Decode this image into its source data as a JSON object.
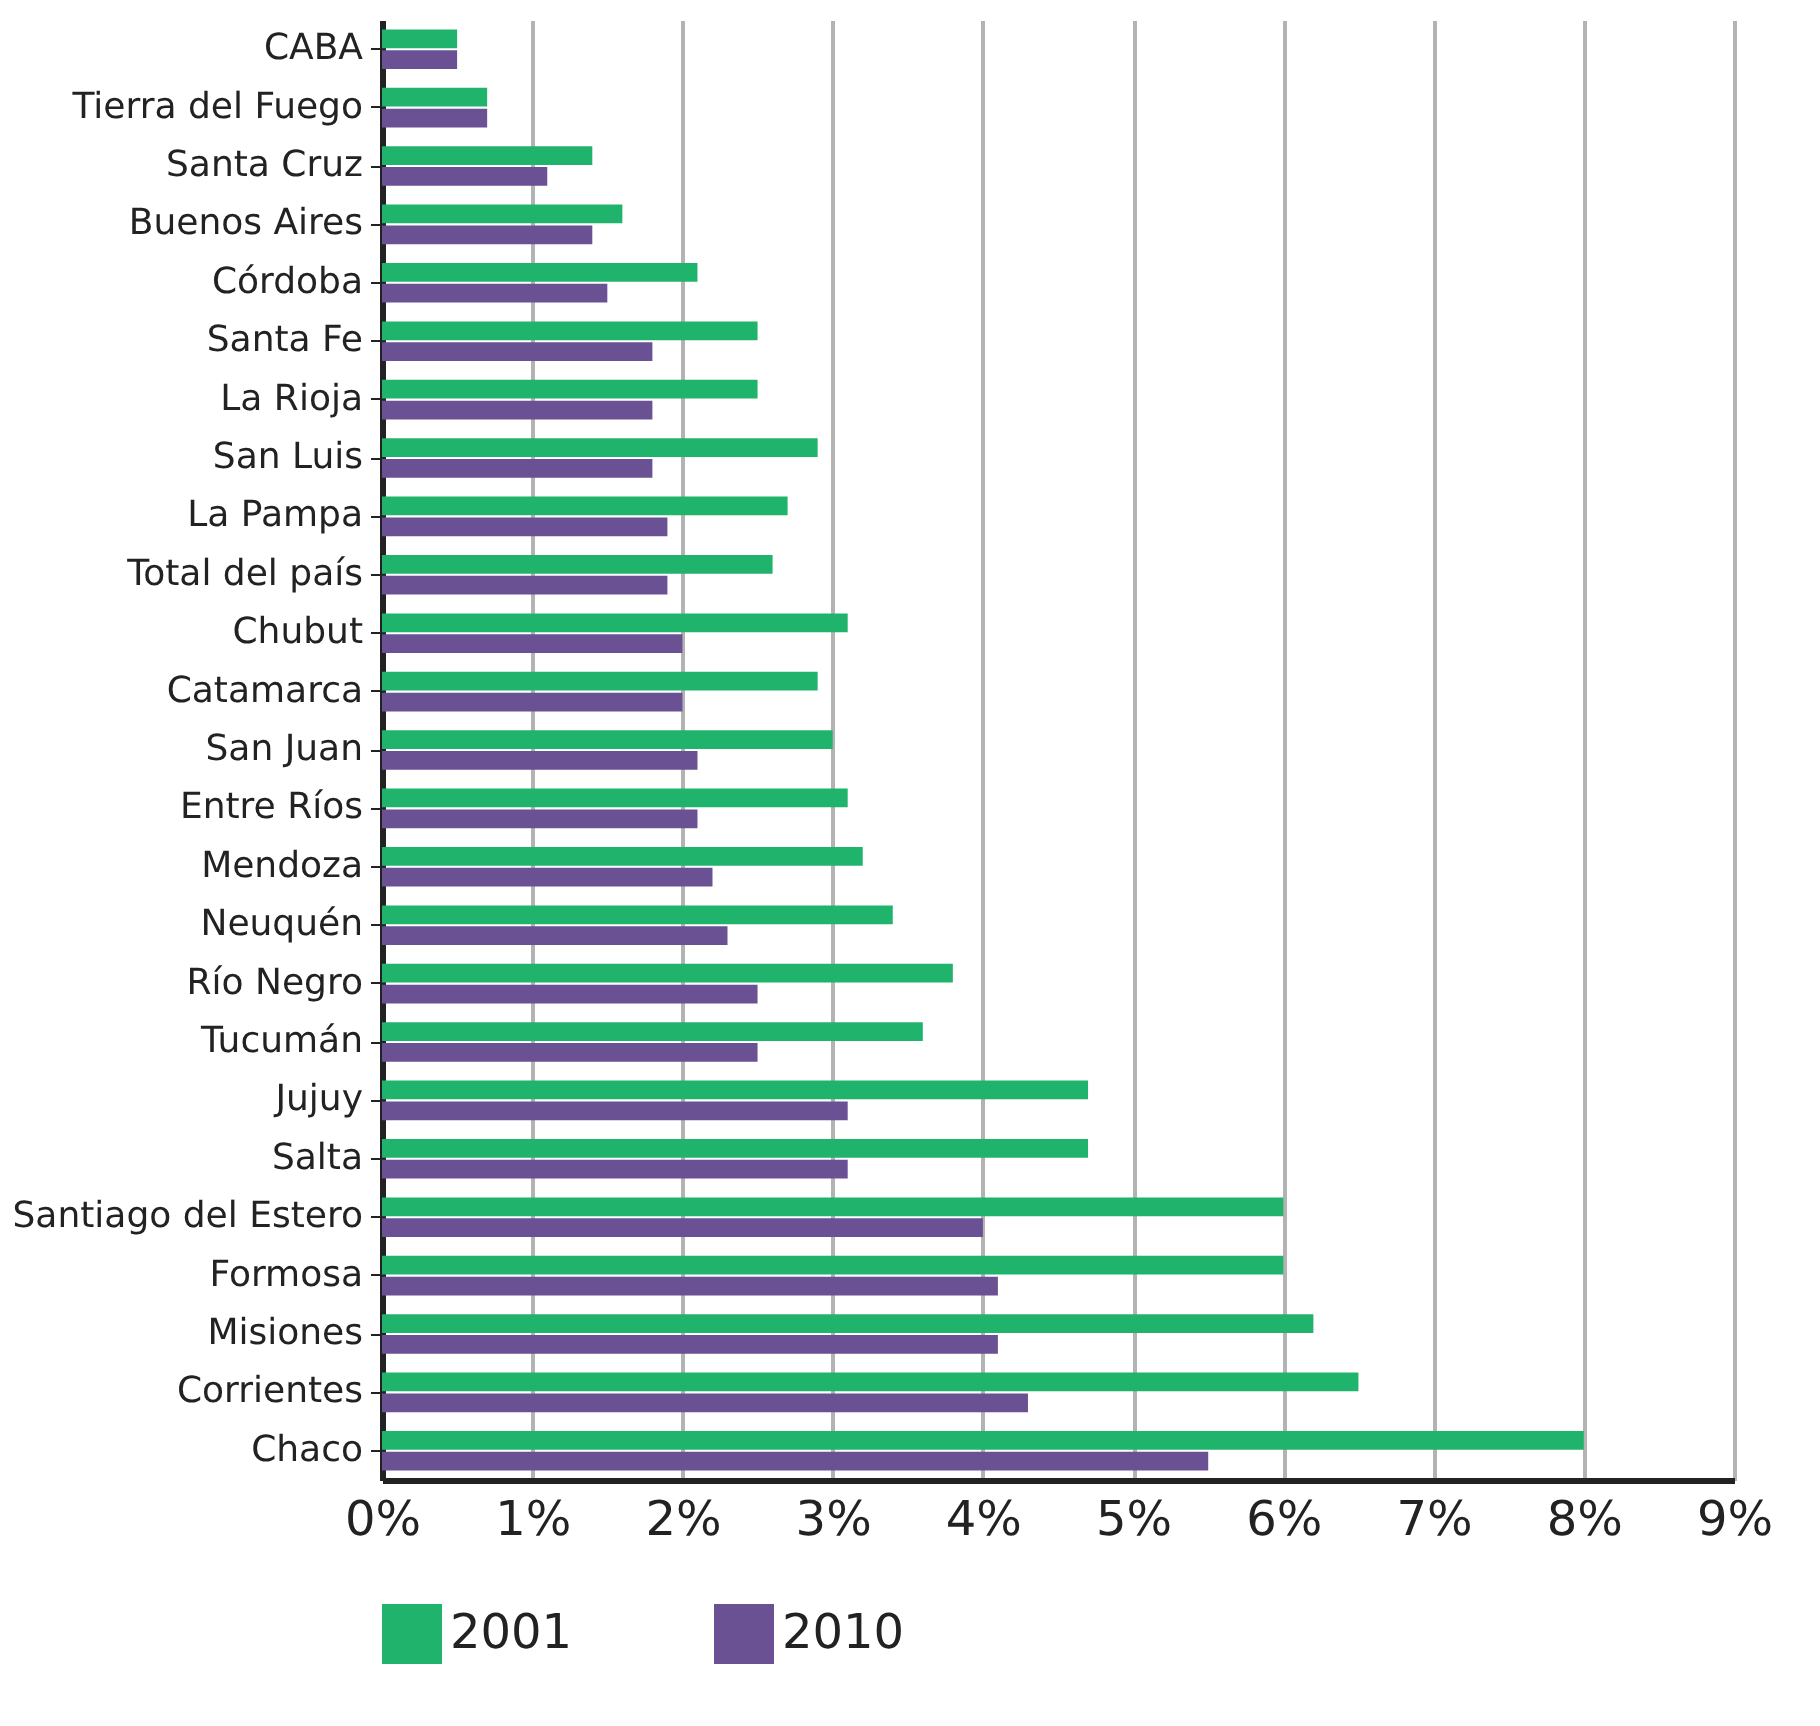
{
  "chart_data": {
    "type": "bar",
    "orientation": "horizontal",
    "categories": [
      "CABA",
      "Tierra del Fuego",
      "Santa Cruz",
      "Buenos Aires",
      "Córdoba",
      "Santa Fe",
      "La Rioja",
      "San Luis",
      "La Pampa",
      "Total del país",
      "Chubut",
      "Catamarca",
      "San Juan",
      "Entre Ríos",
      "Mendoza",
      "Neuquén",
      "Río Negro",
      "Tucumán",
      "Jujuy",
      "Salta",
      "Santiago del Estero",
      "Formosa",
      "Misiones",
      "Corrientes",
      "Chaco"
    ],
    "series": [
      {
        "name": "2001",
        "color": "#20b36b",
        "values": [
          0.5,
          0.7,
          1.4,
          1.6,
          2.1,
          2.5,
          2.5,
          2.9,
          2.7,
          2.6,
          3.1,
          2.9,
          3.0,
          3.1,
          3.2,
          3.4,
          3.8,
          3.6,
          4.7,
          4.7,
          6.0,
          6.0,
          6.2,
          6.5,
          8.0
        ]
      },
      {
        "name": "2010",
        "color": "#6a5193",
        "values": [
          0.5,
          0.7,
          1.1,
          1.4,
          1.5,
          1.8,
          1.8,
          1.8,
          1.9,
          1.9,
          2.0,
          2.0,
          2.1,
          2.1,
          2.2,
          2.3,
          2.5,
          2.5,
          3.1,
          3.1,
          4.0,
          4.1,
          4.1,
          4.3,
          5.5
        ]
      }
    ],
    "xlim": [
      0,
      9
    ],
    "xticks": [
      {
        "value": 0,
        "label": "0%"
      },
      {
        "value": 1,
        "label": "1%"
      },
      {
        "value": 2,
        "label": "2%"
      },
      {
        "value": 3,
        "label": "3%"
      },
      {
        "value": 4,
        "label": "4%"
      },
      {
        "value": 5,
        "label": "5%"
      },
      {
        "value": 6,
        "label": "6%"
      },
      {
        "value": 7,
        "label": "7%"
      },
      {
        "value": 8,
        "label": "8%"
      },
      {
        "value": 9,
        "label": "9%"
      }
    ],
    "grid": "x",
    "legend": "bottom"
  }
}
